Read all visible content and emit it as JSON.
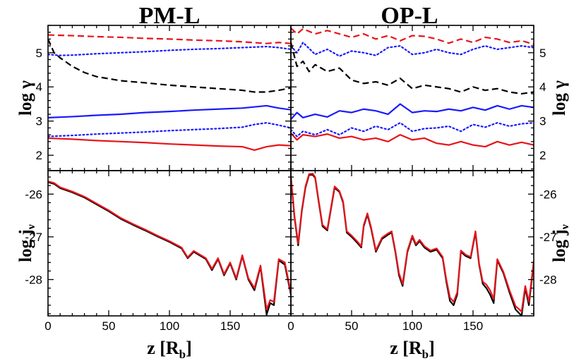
{
  "colors": {
    "black": "#000000",
    "blue": "#1a1aff",
    "red": "#e8141b"
  },
  "titles": {
    "left": "PM-L",
    "right": "OP-L"
  },
  "axis_labels": {
    "log_gamma": "log γ",
    "log_j_main": "log j",
    "log_j_sub": "ν",
    "z_main": "z [R",
    "z_sub": "b",
    "z_close": "]"
  },
  "chart_data": [
    {
      "id": "PM-L-top",
      "type": "line",
      "title": "PM-L",
      "ylabel": "log γ",
      "xlim": [
        0,
        200
      ],
      "ylim": [
        1.55,
        5.8
      ],
      "yticks": [
        2,
        3,
        4,
        5
      ],
      "series": [
        {
          "name": "red dashed",
          "color": "red",
          "style": "dashed",
          "x": [
            0,
            20,
            40,
            60,
            80,
            100,
            120,
            140,
            160,
            180,
            190,
            200
          ],
          "y": [
            5.52,
            5.5,
            5.47,
            5.45,
            5.42,
            5.4,
            5.37,
            5.35,
            5.32,
            5.27,
            5.3,
            5.27
          ]
        },
        {
          "name": "blue dotted upper",
          "color": "blue",
          "style": "dotted",
          "x": [
            0,
            10,
            20,
            40,
            60,
            80,
            100,
            120,
            140,
            160,
            180,
            190,
            200
          ],
          "y": [
            4.95,
            4.92,
            4.93,
            4.97,
            5.0,
            5.03,
            5.07,
            5.1,
            5.12,
            5.15,
            5.18,
            5.15,
            5.1
          ]
        },
        {
          "name": "black dashed",
          "color": "black",
          "style": "dashed",
          "x": [
            0,
            5,
            10,
            20,
            30,
            40,
            60,
            80,
            100,
            120,
            140,
            160,
            170,
            180,
            190,
            200
          ],
          "y": [
            5.4,
            5.0,
            4.85,
            4.6,
            4.42,
            4.3,
            4.18,
            4.12,
            4.05,
            4.0,
            3.95,
            3.9,
            3.85,
            3.85,
            3.9,
            3.97
          ]
        },
        {
          "name": "blue solid",
          "color": "blue",
          "style": "solid",
          "x": [
            0,
            20,
            40,
            60,
            80,
            100,
            120,
            140,
            160,
            180,
            190,
            200
          ],
          "y": [
            3.1,
            3.13,
            3.17,
            3.2,
            3.25,
            3.28,
            3.32,
            3.35,
            3.38,
            3.45,
            3.38,
            3.33
          ]
        },
        {
          "name": "blue dotted lower",
          "color": "blue",
          "style": "dotted",
          "x": [
            0,
            20,
            40,
            60,
            80,
            100,
            120,
            140,
            160,
            170,
            180,
            190,
            200
          ],
          "y": [
            2.55,
            2.58,
            2.62,
            2.65,
            2.68,
            2.72,
            2.75,
            2.78,
            2.82,
            2.9,
            2.95,
            2.88,
            2.8
          ]
        },
        {
          "name": "red solid",
          "color": "red",
          "style": "solid",
          "x": [
            0,
            20,
            40,
            60,
            80,
            100,
            120,
            140,
            160,
            170,
            180,
            190,
            200
          ],
          "y": [
            2.5,
            2.47,
            2.43,
            2.4,
            2.37,
            2.33,
            2.3,
            2.27,
            2.25,
            2.15,
            2.25,
            2.3,
            2.28
          ]
        }
      ]
    },
    {
      "id": "PM-L-bottom",
      "type": "line",
      "ylabel": "log jν",
      "xlabel": "z [Rb]",
      "xlim": [
        0,
        200
      ],
      "xticks": [
        0,
        50,
        100,
        150
      ],
      "ylim": [
        -28.85,
        -25.45
      ],
      "yticks": [
        -26,
        -27,
        -28
      ],
      "series": [
        {
          "name": "black",
          "color": "black",
          "style": "solid",
          "x": [
            0,
            5,
            10,
            20,
            30,
            40,
            50,
            60,
            70,
            80,
            90,
            100,
            110,
            115,
            120,
            130,
            135,
            140,
            145,
            150,
            155,
            160,
            165,
            170,
            175,
            180,
            183,
            186,
            190,
            195,
            200
          ],
          "y": [
            -25.72,
            -25.76,
            -25.86,
            -25.96,
            -26.08,
            -26.24,
            -26.4,
            -26.58,
            -26.72,
            -26.85,
            -26.99,
            -27.12,
            -27.27,
            -27.5,
            -27.35,
            -27.52,
            -27.78,
            -27.52,
            -27.9,
            -27.62,
            -28.0,
            -27.45,
            -28.0,
            -28.25,
            -27.7,
            -28.82,
            -28.55,
            -28.6,
            -27.55,
            -27.65,
            -28.35
          ]
        },
        {
          "name": "red",
          "color": "red",
          "style": "solid",
          "x": [
            0,
            5,
            10,
            20,
            30,
            40,
            50,
            60,
            70,
            80,
            90,
            100,
            110,
            115,
            120,
            130,
            135,
            140,
            145,
            150,
            155,
            160,
            165,
            170,
            175,
            180,
            183,
            186,
            190,
            195,
            200
          ],
          "y": [
            -25.7,
            -25.74,
            -25.84,
            -25.94,
            -26.06,
            -26.22,
            -26.38,
            -26.56,
            -26.7,
            -26.83,
            -26.97,
            -27.1,
            -27.25,
            -27.48,
            -27.33,
            -27.5,
            -27.75,
            -27.5,
            -27.87,
            -27.6,
            -27.97,
            -27.43,
            -27.97,
            -28.2,
            -27.67,
            -28.7,
            -28.48,
            -28.52,
            -27.52,
            -27.6,
            -28.3
          ]
        }
      ]
    },
    {
      "id": "OP-L-top",
      "type": "line",
      "title": "OP-L",
      "ylabel": "log γ",
      "xlim": [
        0,
        200
      ],
      "ylim": [
        1.55,
        5.8
      ],
      "yticks": [
        2,
        3,
        4,
        5
      ],
      "series": [
        {
          "name": "red dashed",
          "color": "red",
          "style": "dashed",
          "x": [
            0,
            5,
            10,
            20,
            30,
            40,
            50,
            60,
            70,
            80,
            90,
            100,
            110,
            120,
            130,
            140,
            150,
            160,
            170,
            180,
            190,
            200
          ],
          "y": [
            5.72,
            5.55,
            5.7,
            5.55,
            5.65,
            5.55,
            5.45,
            5.55,
            5.4,
            5.5,
            5.35,
            5.5,
            5.48,
            5.4,
            5.28,
            5.4,
            5.3,
            5.45,
            5.4,
            5.3,
            5.35,
            5.25
          ]
        },
        {
          "name": "blue dotted upper",
          "color": "blue",
          "style": "dotted",
          "x": [
            0,
            5,
            10,
            20,
            30,
            40,
            50,
            60,
            70,
            80,
            90,
            100,
            110,
            120,
            130,
            140,
            150,
            160,
            170,
            180,
            190,
            200
          ],
          "y": [
            5.2,
            5.0,
            5.3,
            4.95,
            5.1,
            4.9,
            5.05,
            5.0,
            4.92,
            5.15,
            5.2,
            4.95,
            5.0,
            5.1,
            5.0,
            4.95,
            5.1,
            5.2,
            5.1,
            5.15,
            5.2,
            5.15
          ]
        },
        {
          "name": "black dashed",
          "color": "black",
          "style": "dashed",
          "x": [
            0,
            5,
            10,
            15,
            20,
            30,
            40,
            50,
            60,
            70,
            80,
            90,
            100,
            110,
            120,
            130,
            140,
            150,
            160,
            170,
            180,
            190,
            200
          ],
          "y": [
            5.3,
            4.6,
            4.75,
            4.45,
            4.65,
            4.45,
            4.55,
            4.2,
            4.1,
            4.15,
            4.05,
            4.25,
            3.95,
            4.05,
            4.0,
            3.95,
            3.85,
            4.0,
            3.9,
            3.95,
            3.85,
            3.8,
            3.85
          ]
        },
        {
          "name": "blue solid",
          "color": "blue",
          "style": "solid",
          "x": [
            0,
            5,
            10,
            20,
            30,
            40,
            50,
            60,
            70,
            80,
            90,
            100,
            110,
            120,
            130,
            140,
            150,
            160,
            170,
            180,
            190,
            200
          ],
          "y": [
            3.05,
            3.25,
            3.1,
            3.2,
            3.12,
            3.3,
            3.25,
            3.35,
            3.3,
            3.2,
            3.5,
            3.25,
            3.3,
            3.28,
            3.35,
            3.3,
            3.4,
            3.32,
            3.45,
            3.35,
            3.45,
            3.4
          ]
        },
        {
          "name": "blue dotted lower",
          "color": "blue",
          "style": "dotted",
          "x": [
            0,
            5,
            10,
            20,
            30,
            40,
            50,
            60,
            70,
            80,
            90,
            100,
            110,
            120,
            130,
            140,
            150,
            160,
            170,
            180,
            190,
            200
          ],
          "y": [
            2.75,
            2.55,
            2.7,
            2.6,
            2.75,
            2.6,
            2.8,
            2.7,
            2.85,
            2.75,
            2.95,
            2.7,
            2.78,
            2.8,
            2.85,
            2.7,
            2.9,
            2.82,
            2.95,
            2.85,
            2.92,
            2.95
          ]
        },
        {
          "name": "red solid",
          "color": "red",
          "style": "solid",
          "x": [
            0,
            5,
            10,
            20,
            30,
            40,
            50,
            60,
            70,
            80,
            90,
            100,
            110,
            120,
            130,
            140,
            150,
            160,
            170,
            180,
            190,
            200
          ],
          "y": [
            2.65,
            2.45,
            2.6,
            2.55,
            2.62,
            2.5,
            2.55,
            2.45,
            2.5,
            2.4,
            2.6,
            2.45,
            2.5,
            2.35,
            2.3,
            2.4,
            2.3,
            2.25,
            2.4,
            2.3,
            2.38,
            2.3
          ]
        }
      ]
    },
    {
      "id": "OP-L-bottom",
      "type": "line",
      "ylabel": "log jν",
      "xlabel": "z [Rb]",
      "xlim": [
        0,
        200
      ],
      "xticks": [
        0,
        50,
        100,
        150
      ],
      "ylim": [
        -28.85,
        -25.45
      ],
      "yticks": [
        -26,
        -27,
        -28
      ],
      "series": [
        {
          "name": "black",
          "color": "black",
          "style": "solid",
          "x": [
            0,
            3,
            6,
            9,
            12,
            15,
            18,
            20,
            23,
            26,
            30,
            33,
            36,
            40,
            43,
            46,
            50,
            55,
            58,
            60,
            63,
            66,
            70,
            75,
            80,
            83,
            86,
            89,
            92,
            96,
            100,
            103,
            106,
            110,
            115,
            120,
            125,
            128,
            131,
            134,
            137,
            140,
            144,
            148,
            152,
            155,
            158,
            161,
            164,
            167,
            170,
            175,
            180,
            185,
            190,
            193,
            196,
            200
          ],
          "y": [
            -25.6,
            -26.55,
            -27.2,
            -26.4,
            -25.85,
            -25.55,
            -25.55,
            -25.62,
            -26.2,
            -26.75,
            -26.85,
            -26.35,
            -25.85,
            -25.95,
            -26.2,
            -26.9,
            -27.0,
            -27.15,
            -27.25,
            -26.75,
            -26.48,
            -26.8,
            -27.35,
            -27.05,
            -26.95,
            -26.9,
            -27.35,
            -27.9,
            -28.15,
            -27.35,
            -27.0,
            -27.2,
            -27.1,
            -27.25,
            -27.35,
            -27.3,
            -27.5,
            -28.05,
            -28.5,
            -28.6,
            -28.35,
            -27.35,
            -27.45,
            -27.5,
            -26.9,
            -27.65,
            -28.1,
            -28.2,
            -28.35,
            -28.55,
            -27.55,
            -27.85,
            -28.3,
            -28.7,
            -28.85,
            -28.2,
            -28.6,
            -27.6
          ]
        },
        {
          "name": "red",
          "color": "red",
          "style": "solid",
          "x": [
            0,
            3,
            6,
            9,
            12,
            15,
            18,
            20,
            23,
            26,
            30,
            33,
            36,
            40,
            43,
            46,
            50,
            55,
            58,
            60,
            63,
            66,
            70,
            75,
            80,
            83,
            86,
            89,
            92,
            96,
            100,
            103,
            106,
            110,
            115,
            120,
            125,
            128,
            131,
            134,
            137,
            140,
            144,
            148,
            152,
            155,
            158,
            161,
            164,
            167,
            170,
            175,
            180,
            185,
            190,
            193,
            196,
            200
          ],
          "y": [
            -25.58,
            -26.52,
            -27.15,
            -26.37,
            -25.82,
            -25.53,
            -25.52,
            -25.6,
            -26.17,
            -26.72,
            -26.82,
            -26.32,
            -25.82,
            -25.93,
            -26.17,
            -26.87,
            -26.97,
            -27.12,
            -27.22,
            -26.72,
            -26.45,
            -26.77,
            -27.32,
            -27.02,
            -26.92,
            -26.87,
            -27.32,
            -27.85,
            -28.1,
            -27.32,
            -26.97,
            -27.17,
            -27.07,
            -27.22,
            -27.32,
            -27.27,
            -27.47,
            -28.0,
            -28.42,
            -28.52,
            -28.3,
            -27.32,
            -27.42,
            -27.47,
            -26.87,
            -27.62,
            -28.05,
            -28.12,
            -28.25,
            -28.45,
            -27.52,
            -27.82,
            -28.25,
            -28.62,
            -28.75,
            -28.15,
            -28.52,
            -27.57
          ]
        }
      ]
    }
  ]
}
